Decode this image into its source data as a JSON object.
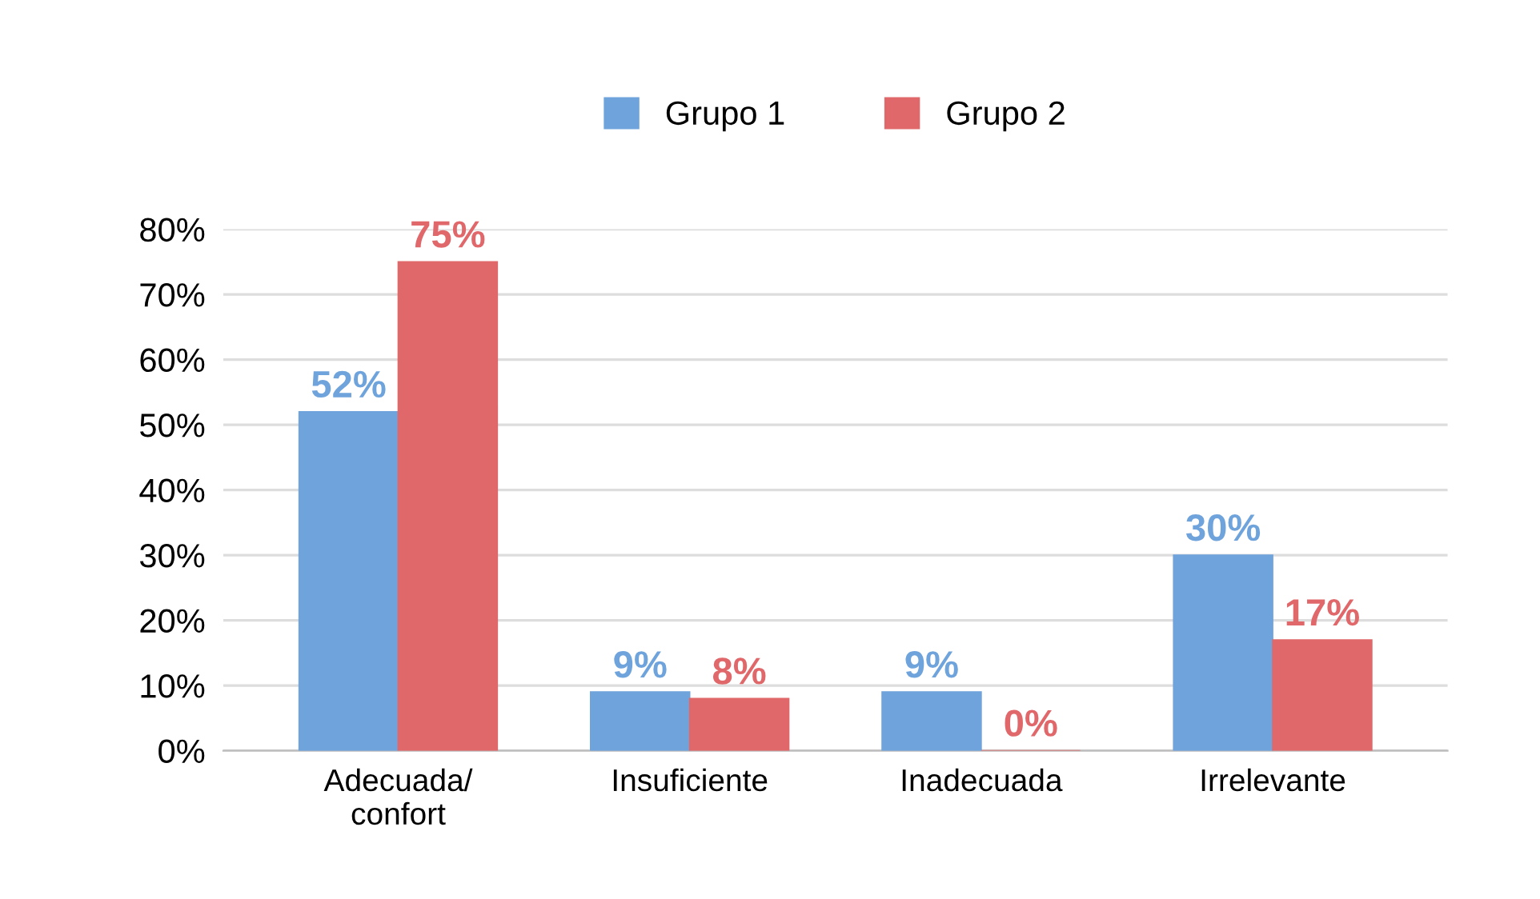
{
  "chart_data": {
    "type": "bar",
    "categories": [
      "Adecuada/\nconfort",
      "Insuficiente",
      "Inadecuada",
      "Irrelevante"
    ],
    "series": [
      {
        "name": "Grupo 1",
        "color": "#6fa3dc",
        "values": [
          52,
          9,
          9,
          30
        ],
        "value_labels": [
          "52%",
          "9%",
          "9%",
          "30%"
        ]
      },
      {
        "name": "Grupo 2",
        "color": "#e0686a",
        "values": [
          75,
          8,
          0,
          17
        ],
        "value_labels": [
          "75%",
          "8%",
          "0%",
          "17%"
        ]
      }
    ],
    "ylim": [
      0,
      80
    ],
    "yticks": [
      {
        "value": 0,
        "label": "0%"
      },
      {
        "value": 10,
        "label": "10%"
      },
      {
        "value": 20,
        "label": "20%"
      },
      {
        "value": 30,
        "label": "30%"
      },
      {
        "value": 40,
        "label": "40%"
      },
      {
        "value": 50,
        "label": "50%"
      },
      {
        "value": 60,
        "label": "60%"
      },
      {
        "value": 70,
        "label": "70%"
      },
      {
        "value": 80,
        "label": "80%"
      }
    ],
    "grid": "y",
    "legend": "top"
  }
}
